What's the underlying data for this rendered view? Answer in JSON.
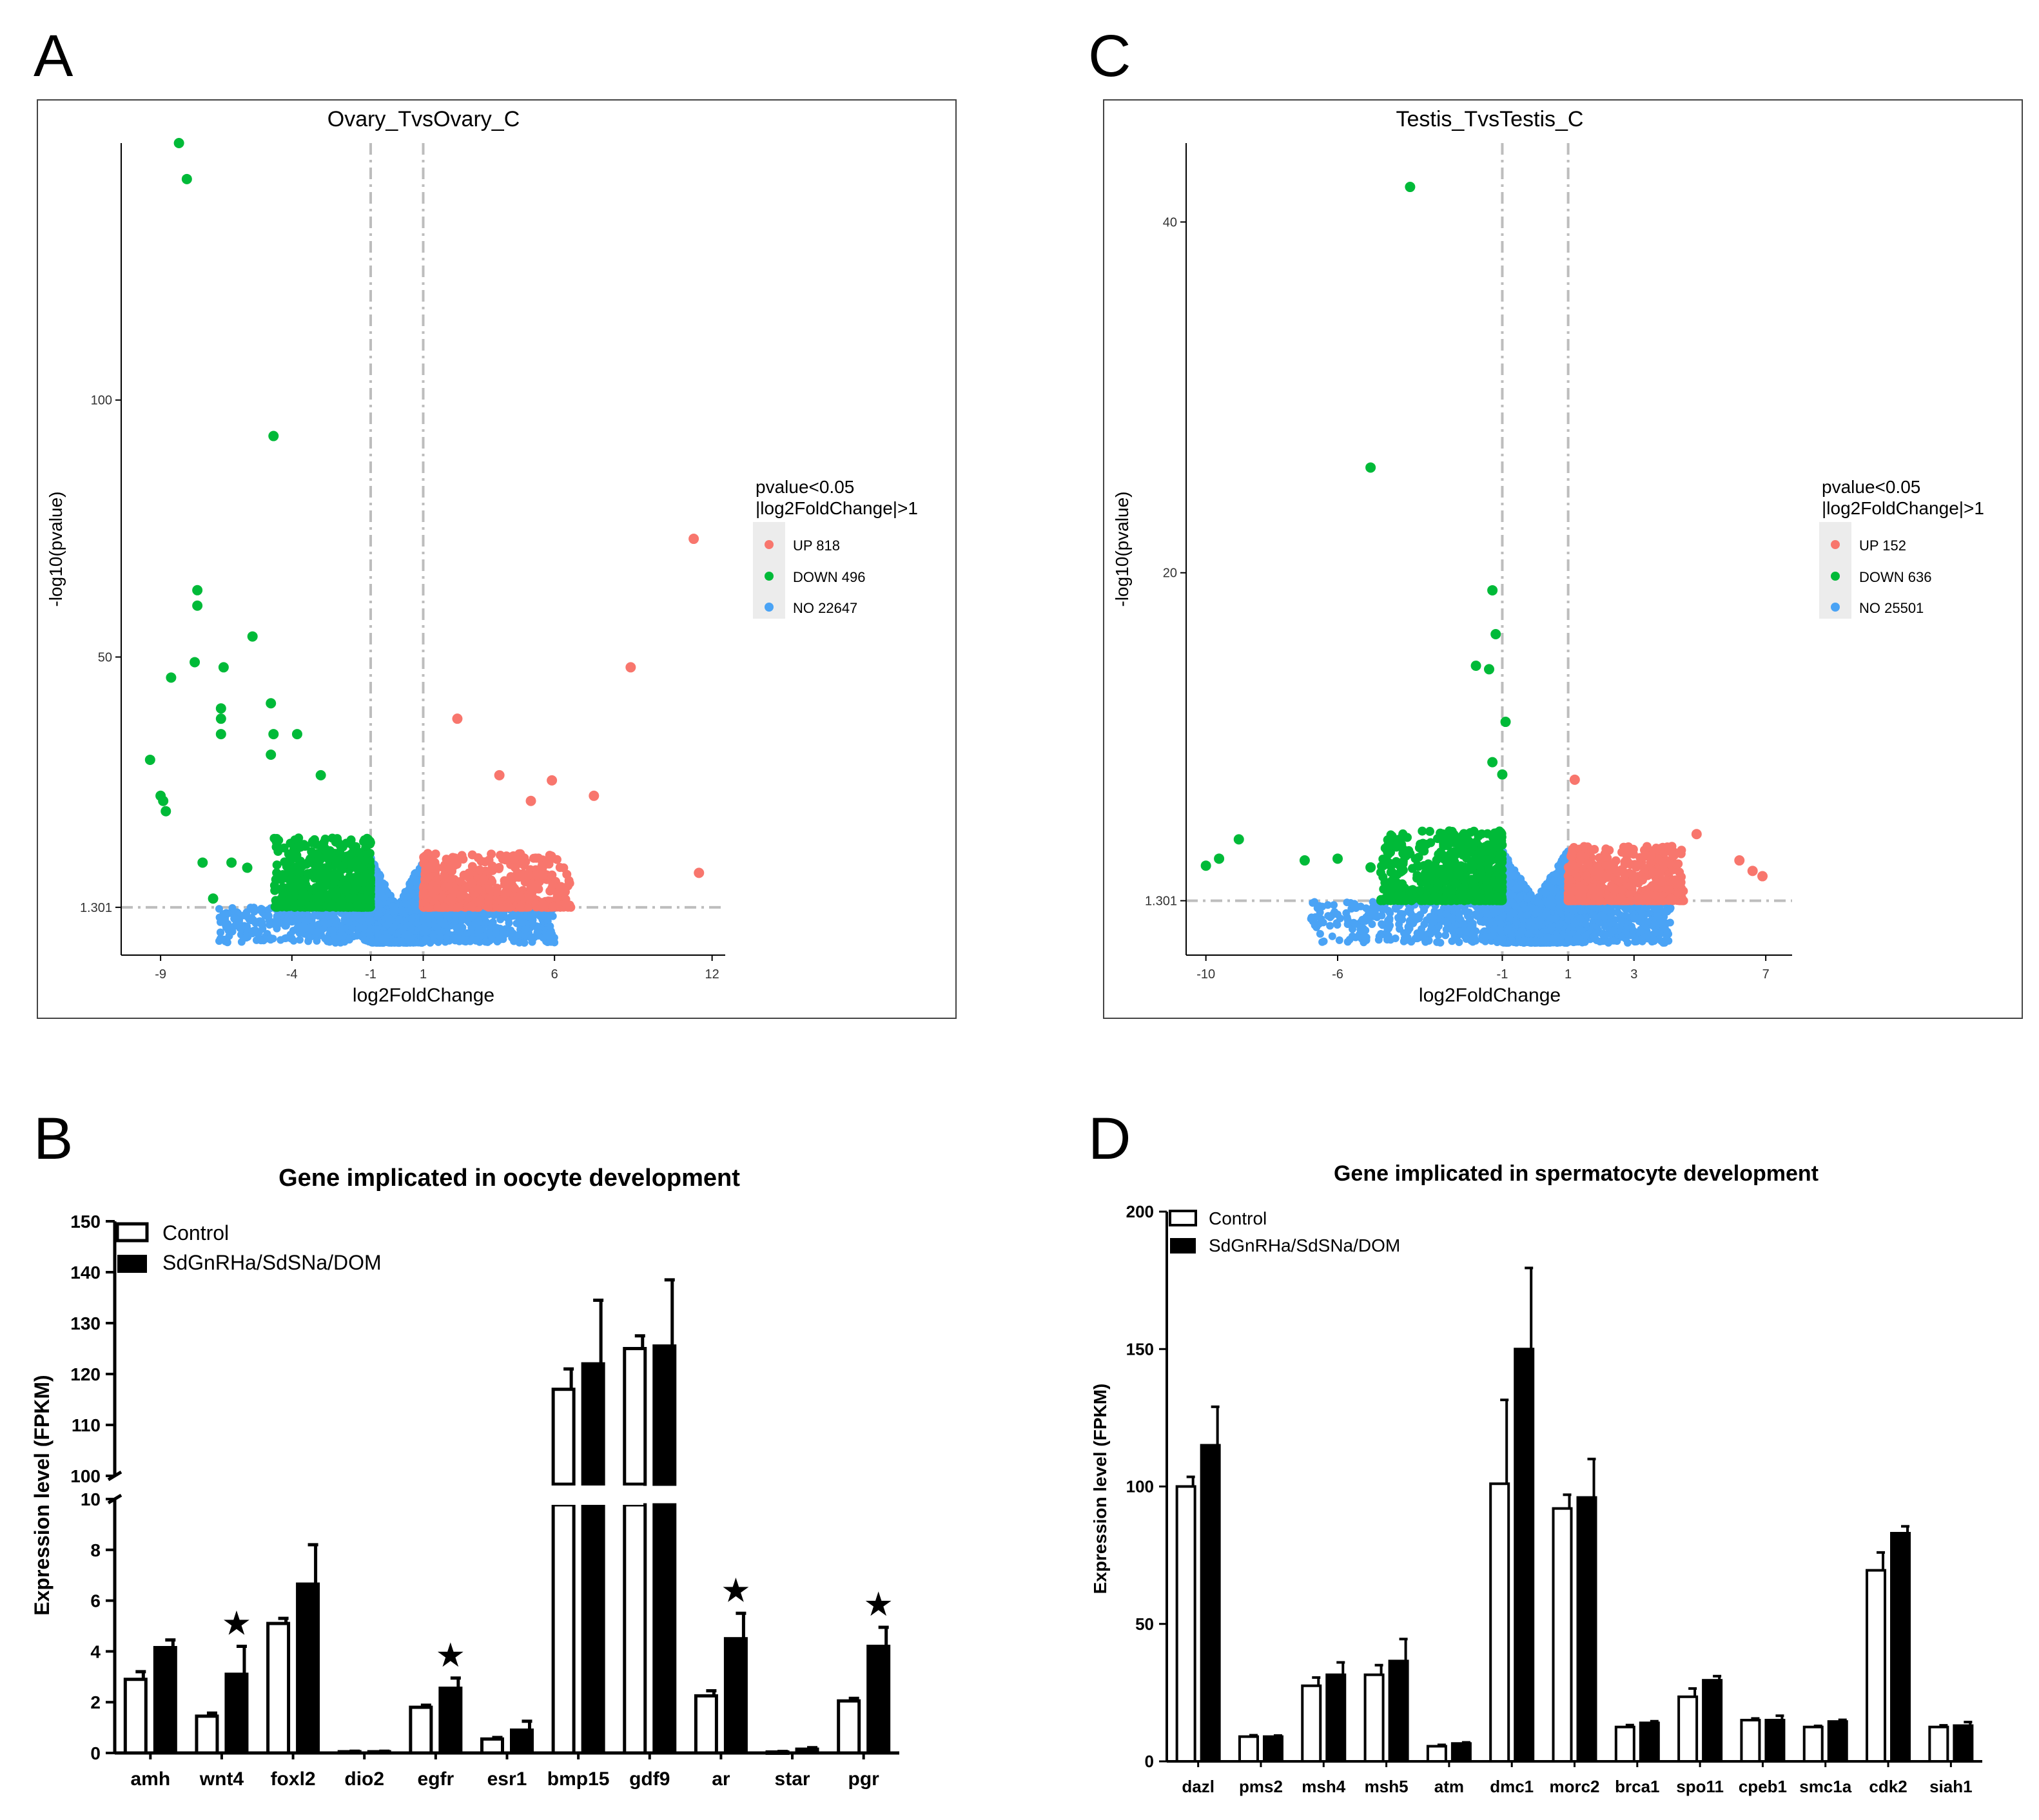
{
  "panels": {
    "A": "A",
    "B": "B",
    "C": "C",
    "D": "D"
  },
  "chart_data": [
    {
      "id": "A",
      "type": "scatter",
      "title": "Ovary_TvsOvary_C",
      "xlabel": "log2FoldChange",
      "ylabel": "-log10(pvalue)",
      "xlim": [
        -10.5,
        12.5
      ],
      "ylim": [
        -8,
        150
      ],
      "x_ticks": [
        -9,
        -4,
        -1,
        1,
        6,
        12
      ],
      "y_ticks": [
        1.301,
        50,
        100
      ],
      "y_tick_labels": [
        "1.301",
        "50",
        "100"
      ],
      "thresholds": {
        "x": [
          -1,
          1
        ],
        "y": 1.301
      },
      "legend": {
        "title_line1": "pvalue<0.05",
        "title_line2": "|log2FoldChange|>1",
        "items": [
          {
            "label": "UP 818",
            "color": "#f8766d"
          },
          {
            "label": "DOWN 496",
            "color": "#00ba38"
          },
          {
            "label": "NO 22647",
            "color": "#4aa3f5"
          }
        ],
        "position": "right"
      },
      "colors": {
        "up": "#f8766d",
        "down": "#00ba38",
        "no": "#4aa3f5"
      },
      "series": [
        {
          "name": "DOWN (labeled outliers)",
          "points": [
            [
              -8.3,
              150
            ],
            [
              -8.0,
              143
            ],
            [
              -4.7,
              93
            ],
            [
              -7.6,
              63
            ],
            [
              -7.6,
              60
            ],
            [
              -9.4,
              30
            ],
            [
              -7.7,
              49
            ],
            [
              -8.6,
              46
            ],
            [
              -6.6,
              48
            ],
            [
              -5.5,
              54
            ],
            [
              -6.7,
              40
            ],
            [
              -6.7,
              38
            ],
            [
              -6.7,
              35
            ],
            [
              -4.8,
              41
            ],
            [
              -4.7,
              35
            ],
            [
              -4.8,
              31
            ],
            [
              -3.8,
              35
            ],
            [
              -9.0,
              23
            ],
            [
              -8.9,
              22
            ],
            [
              -8.8,
              20
            ],
            [
              -7.4,
              10
            ],
            [
              -6.3,
              10
            ],
            [
              -2.9,
              27
            ],
            [
              -7.0,
              3
            ],
            [
              -5.7,
              9
            ]
          ]
        },
        {
          "name": "UP (labeled outliers)",
          "points": [
            [
              11.3,
              73
            ],
            [
              8.9,
              48
            ],
            [
              2.3,
              38
            ],
            [
              11.5,
              8
            ],
            [
              3.9,
              27
            ],
            [
              5.9,
              26
            ],
            [
              7.5,
              23
            ],
            [
              5.1,
              22
            ]
          ]
        }
      ]
    },
    {
      "id": "C",
      "type": "scatter",
      "title": "Testis_TvsTestis_C",
      "xlabel": "log2FoldChange",
      "ylabel": "-log10(pvalue)",
      "xlim": [
        -10.6,
        7.8
      ],
      "ylim": [
        -1.8,
        44.5
      ],
      "x_ticks": [
        -10,
        -6,
        -1,
        1,
        3,
        7
      ],
      "y_ticks": [
        1.301,
        20,
        40
      ],
      "y_tick_labels": [
        "1.301",
        "20",
        "40"
      ],
      "thresholds": {
        "x": [
          -1,
          1
        ],
        "y": 1.301
      },
      "legend": {
        "title_line1": "pvalue<0.05",
        "title_line2": "|log2FoldChange|>1",
        "items": [
          {
            "label": "UP 152",
            "color": "#f8766d"
          },
          {
            "label": "DOWN 636",
            "color": "#00ba38"
          },
          {
            "label": "NO 25501",
            "color": "#4aa3f5"
          }
        ],
        "position": "right"
      },
      "colors": {
        "up": "#f8766d",
        "down": "#00ba38",
        "no": "#4aa3f5"
      },
      "series": [
        {
          "name": "DOWN (labeled outliers)",
          "points": [
            [
              -3.8,
              42
            ],
            [
              -5.0,
              26
            ],
            [
              -1.3,
              19
            ],
            [
              -1.2,
              16.5
            ],
            [
              -1.8,
              14.7
            ],
            [
              -1.4,
              14.5
            ],
            [
              -0.9,
              11.5
            ],
            [
              -1.3,
              9.2
            ],
            [
              -1.0,
              8.5
            ],
            [
              -9.0,
              4.8
            ],
            [
              -9.6,
              3.7
            ],
            [
              -10.0,
              3.3
            ],
            [
              -7.0,
              3.6
            ],
            [
              -6.0,
              3.7
            ],
            [
              -5.0,
              3.2
            ],
            [
              -4.0,
              4.0
            ]
          ]
        },
        {
          "name": "UP (labeled outliers)",
          "points": [
            [
              1.2,
              8.2
            ],
            [
              4.9,
              5.1
            ],
            [
              6.2,
              3.6
            ],
            [
              6.6,
              3.0
            ],
            [
              6.9,
              2.7
            ],
            [
              4.2,
              3.9
            ]
          ]
        }
      ]
    },
    {
      "id": "B",
      "type": "bar",
      "title": "Gene implicated in oocyte development",
      "xlabel": "",
      "ylabel": "Expression level (FPKM)",
      "axis_break": {
        "lower": [
          0,
          10
        ],
        "upper": [
          100,
          150
        ]
      },
      "y_ticks_lower": [
        0,
        2,
        4,
        6,
        8,
        10
      ],
      "y_ticks_upper": [
        100,
        110,
        120,
        130,
        140,
        150
      ],
      "categories": [
        "amh",
        "wnt4",
        "foxl2",
        "dio2",
        "egfr",
        "esr1",
        "bmp15",
        "gdf9",
        "ar",
        "star",
        "pgr"
      ],
      "series": [
        {
          "name": "Control",
          "fill": "#ffffff",
          "values": [
            2.9,
            1.45,
            5.1,
            0.05,
            1.8,
            0.55,
            117,
            125,
            2.25,
            0.04,
            2.05
          ],
          "errors": [
            0.3,
            0.12,
            0.2,
            0.02,
            0.08,
            0.06,
            4,
            2.5,
            0.2,
            0.02,
            0.1
          ]
        },
        {
          "name": "SdGnRHa/SdSNa/DOM",
          "fill": "#000000",
          "values": [
            4.15,
            3.1,
            6.65,
            0.05,
            2.55,
            0.9,
            122,
            125.5,
            4.5,
            0.15,
            4.2
          ],
          "errors": [
            0.3,
            1.1,
            1.55,
            0.02,
            0.4,
            0.35,
            12.5,
            13,
            1.0,
            0.06,
            0.75
          ]
        }
      ],
      "significance": {
        "marker": "★",
        "categories": [
          "wnt4",
          "egfr",
          "ar",
          "pgr"
        ]
      },
      "legend_position": "top-left"
    },
    {
      "id": "D",
      "type": "bar",
      "title": "Gene implicated in spermatocyte development",
      "xlabel": "",
      "ylabel": "Expression level (FPKM)",
      "ylim": [
        0,
        200
      ],
      "y_ticks": [
        0,
        50,
        100,
        150,
        200
      ],
      "categories": [
        "dazl",
        "pms2",
        "msh4",
        "msh5",
        "atm",
        "dmc1",
        "morc2",
        "brca1",
        "spo11",
        "cpeb1",
        "smc1a",
        "cdk2",
        "siah1"
      ],
      "series": [
        {
          "name": "Control",
          "fill": "#ffffff",
          "values": [
            100,
            9,
            27.5,
            31.5,
            5.5,
            101,
            92,
            12.5,
            23.5,
            15,
            12.5,
            69.5,
            12.5
          ],
          "errors": [
            3.5,
            0.5,
            3,
            3.5,
            0.5,
            30.5,
            5,
            0.7,
            3,
            0.6,
            0.4,
            6.5,
            0.6
          ]
        },
        {
          "name": "SdGnRHa/SdSNa/DOM",
          "fill": "#000000",
          "values": [
            115,
            9,
            31.5,
            36.5,
            6.5,
            150,
            96,
            14,
            29.5,
            15,
            14.5,
            83,
            13
          ],
          "errors": [
            14,
            0.4,
            4.5,
            8,
            0.4,
            29.5,
            14,
            0.6,
            1.5,
            1.6,
            0.6,
            2.5,
            1.3
          ]
        }
      ],
      "legend_position": "top-left"
    }
  ]
}
